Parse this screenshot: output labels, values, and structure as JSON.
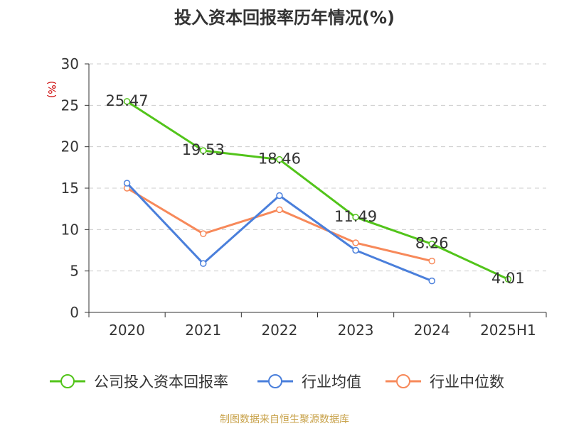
{
  "chart_data": {
    "type": "line",
    "title": "投入资本回报率历年情况(%)",
    "ylabel": "(%)",
    "xlabel": "",
    "categories": [
      "2020",
      "2021",
      "2022",
      "2023",
      "2024",
      "2025H1"
    ],
    "ylim": [
      0,
      30
    ],
    "yticks": [
      0,
      5,
      10,
      15,
      20,
      25,
      30
    ],
    "grid": true,
    "legend_position": "bottom",
    "series": [
      {
        "name": "公司投入资本回报率",
        "color": "#52c41a",
        "values": [
          25.47,
          19.53,
          18.46,
          11.49,
          8.26,
          4.01
        ],
        "show_labels": true
      },
      {
        "name": "行业均值",
        "color": "#4a7fdb",
        "values": [
          15.6,
          5.9,
          14.1,
          7.5,
          3.8,
          null
        ],
        "show_labels": false
      },
      {
        "name": "行业中位数",
        "color": "#f7895a",
        "values": [
          15.0,
          9.5,
          12.4,
          8.4,
          6.2,
          null
        ],
        "show_labels": false
      }
    ]
  },
  "footer": {
    "source": "制图数据来自恒生聚源数据库"
  },
  "colors": {
    "text": "#333333",
    "axis": "#333333",
    "grid": "#cccccc",
    "ylabel": "#cc0000",
    "source": "#c8a24a"
  }
}
